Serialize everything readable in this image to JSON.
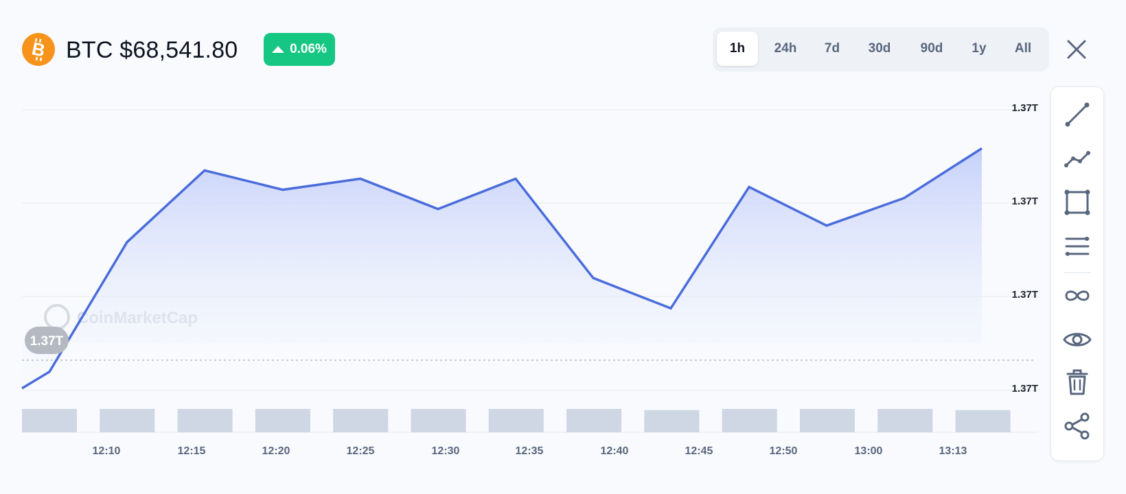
{
  "header": {
    "symbol_icon": "bitcoin-icon",
    "title": "BTC $68,541.80",
    "change": "0.06%",
    "change_direction": "up",
    "change_color": "#16c784"
  },
  "timeframes": {
    "options": [
      "1h",
      "24h",
      "7d",
      "30d",
      "90d",
      "1y",
      "All"
    ],
    "active": "1h"
  },
  "toolbar": {
    "tools": [
      "trend-line-icon",
      "polyline-icon",
      "rectangle-icon",
      "parallel-lines-icon",
      "infinity-icon",
      "eye-icon",
      "trash-icon",
      "share-icon"
    ]
  },
  "chart_data": {
    "type": "area",
    "watermark": "CoinMarketCap",
    "current_value_label": "1.37T",
    "y_tick_labels": [
      "1.37T",
      "1.37T",
      "1.37T",
      "1.37T"
    ],
    "x_tick_labels": [
      "12:10",
      "12:15",
      "12:20",
      "12:25",
      "12:30",
      "12:35",
      "12:40",
      "12:45",
      "12:50",
      "13:00",
      "13:13"
    ],
    "ylim": [
      0,
      100
    ],
    "series": [
      {
        "values": [
          1,
          7,
          54,
          80,
          73,
          77,
          66,
          77,
          41,
          30,
          74,
          60,
          70,
          88
        ],
        "color": "#4a6cdb"
      }
    ],
    "volume": [
      10,
      10,
      10,
      10,
      10,
      10,
      10,
      10,
      9.5,
      10,
      10,
      10,
      9.5
    ],
    "line_color": "#4a6cdb",
    "volume_color": "#cfd6e4",
    "grid": true
  }
}
